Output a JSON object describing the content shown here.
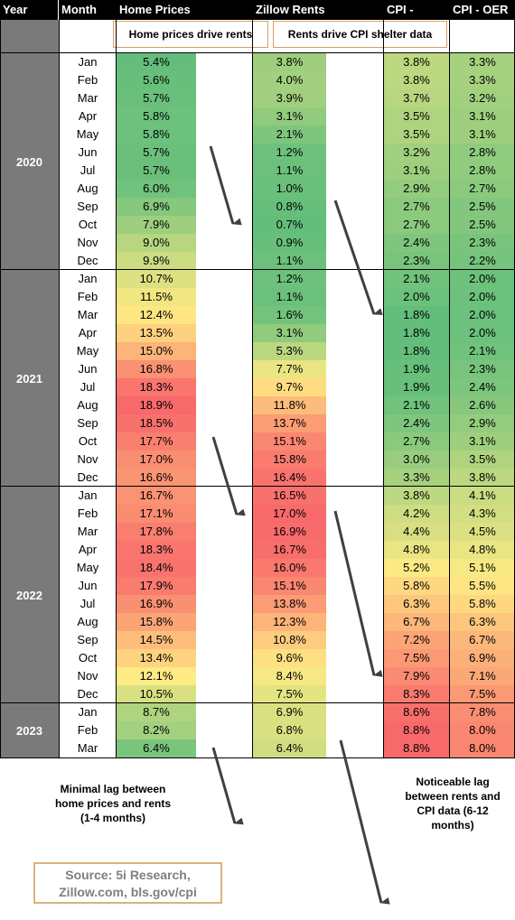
{
  "header": {
    "year": "Year",
    "month": "Month",
    "home_prices": "Home Prices",
    "zillow_rents": "Zillow Rents",
    "cpi_rents": "CPI - Rents",
    "cpi_oer": "CPI - OER"
  },
  "callouts": {
    "left": "Home prices drive rents",
    "right": "Rents drive CPI shelter data"
  },
  "notes": {
    "left": "Minimal lag between home prices and rents (1-4 months)",
    "right": "Noticeable lag between rents and CPI data (6-12 months)"
  },
  "source": "Source: 5i Research, Zillow.com, bls.gov/cpi",
  "colors": {
    "low": "#63be7b",
    "mid": "#ffeb84",
    "high": "#f8696b",
    "header_bg": "#000000",
    "year_bg": "#7a7a7a"
  },
  "chart_data": {
    "type": "table",
    "columns": [
      "Year",
      "Month",
      "Home Prices",
      "Zillow Rents",
      "CPI - Rents",
      "CPI - OER"
    ],
    "years": [
      {
        "year": "2020",
        "rows": [
          {
            "month": "Jan",
            "home_prices": "5.4%",
            "zillow_rents": "3.8%",
            "cpi_rents": "3.8%",
            "cpi_oer": "3.3%"
          },
          {
            "month": "Feb",
            "home_prices": "5.6%",
            "zillow_rents": "4.0%",
            "cpi_rents": "3.8%",
            "cpi_oer": "3.3%"
          },
          {
            "month": "Mar",
            "home_prices": "5.7%",
            "zillow_rents": "3.9%",
            "cpi_rents": "3.7%",
            "cpi_oer": "3.2%"
          },
          {
            "month": "Apr",
            "home_prices": "5.8%",
            "zillow_rents": "3.1%",
            "cpi_rents": "3.5%",
            "cpi_oer": "3.1%"
          },
          {
            "month": "May",
            "home_prices": "5.8%",
            "zillow_rents": "2.1%",
            "cpi_rents": "3.5%",
            "cpi_oer": "3.1%"
          },
          {
            "month": "Jun",
            "home_prices": "5.7%",
            "zillow_rents": "1.2%",
            "cpi_rents": "3.2%",
            "cpi_oer": "2.8%"
          },
          {
            "month": "Jul",
            "home_prices": "5.7%",
            "zillow_rents": "1.1%",
            "cpi_rents": "3.1%",
            "cpi_oer": "2.8%"
          },
          {
            "month": "Aug",
            "home_prices": "6.0%",
            "zillow_rents": "1.0%",
            "cpi_rents": "2.9%",
            "cpi_oer": "2.7%"
          },
          {
            "month": "Sep",
            "home_prices": "6.9%",
            "zillow_rents": "0.8%",
            "cpi_rents": "2.7%",
            "cpi_oer": "2.5%"
          },
          {
            "month": "Oct",
            "home_prices": "7.9%",
            "zillow_rents": "0.7%",
            "cpi_rents": "2.7%",
            "cpi_oer": "2.5%"
          },
          {
            "month": "Nov",
            "home_prices": "9.0%",
            "zillow_rents": "0.9%",
            "cpi_rents": "2.4%",
            "cpi_oer": "2.3%"
          },
          {
            "month": "Dec",
            "home_prices": "9.9%",
            "zillow_rents": "1.1%",
            "cpi_rents": "2.3%",
            "cpi_oer": "2.2%"
          }
        ]
      },
      {
        "year": "2021",
        "rows": [
          {
            "month": "Jan",
            "home_prices": "10.7%",
            "zillow_rents": "1.2%",
            "cpi_rents": "2.1%",
            "cpi_oer": "2.0%"
          },
          {
            "month": "Feb",
            "home_prices": "11.5%",
            "zillow_rents": "1.1%",
            "cpi_rents": "2.0%",
            "cpi_oer": "2.0%"
          },
          {
            "month": "Mar",
            "home_prices": "12.4%",
            "zillow_rents": "1.6%",
            "cpi_rents": "1.8%",
            "cpi_oer": "2.0%"
          },
          {
            "month": "Apr",
            "home_prices": "13.5%",
            "zillow_rents": "3.1%",
            "cpi_rents": "1.8%",
            "cpi_oer": "2.0%"
          },
          {
            "month": "May",
            "home_prices": "15.0%",
            "zillow_rents": "5.3%",
            "cpi_rents": "1.8%",
            "cpi_oer": "2.1%"
          },
          {
            "month": "Jun",
            "home_prices": "16.8%",
            "zillow_rents": "7.7%",
            "cpi_rents": "1.9%",
            "cpi_oer": "2.3%"
          },
          {
            "month": "Jul",
            "home_prices": "18.3%",
            "zillow_rents": "9.7%",
            "cpi_rents": "1.9%",
            "cpi_oer": "2.4%"
          },
          {
            "month": "Aug",
            "home_prices": "18.9%",
            "zillow_rents": "11.8%",
            "cpi_rents": "2.1%",
            "cpi_oer": "2.6%"
          },
          {
            "month": "Sep",
            "home_prices": "18.5%",
            "zillow_rents": "13.7%",
            "cpi_rents": "2.4%",
            "cpi_oer": "2.9%"
          },
          {
            "month": "Oct",
            "home_prices": "17.7%",
            "zillow_rents": "15.1%",
            "cpi_rents": "2.7%",
            "cpi_oer": "3.1%"
          },
          {
            "month": "Nov",
            "home_prices": "17.0%",
            "zillow_rents": "15.8%",
            "cpi_rents": "3.0%",
            "cpi_oer": "3.5%"
          },
          {
            "month": "Dec",
            "home_prices": "16.6%",
            "zillow_rents": "16.4%",
            "cpi_rents": "3.3%",
            "cpi_oer": "3.8%"
          }
        ]
      },
      {
        "year": "2022",
        "rows": [
          {
            "month": "Jan",
            "home_prices": "16.7%",
            "zillow_rents": "16.5%",
            "cpi_rents": "3.8%",
            "cpi_oer": "4.1%"
          },
          {
            "month": "Feb",
            "home_prices": "17.1%",
            "zillow_rents": "17.0%",
            "cpi_rents": "4.2%",
            "cpi_oer": "4.3%"
          },
          {
            "month": "Mar",
            "home_prices": "17.8%",
            "zillow_rents": "16.9%",
            "cpi_rents": "4.4%",
            "cpi_oer": "4.5%"
          },
          {
            "month": "Apr",
            "home_prices": "18.3%",
            "zillow_rents": "16.7%",
            "cpi_rents": "4.8%",
            "cpi_oer": "4.8%"
          },
          {
            "month": "May",
            "home_prices": "18.4%",
            "zillow_rents": "16.0%",
            "cpi_rents": "5.2%",
            "cpi_oer": "5.1%"
          },
          {
            "month": "Jun",
            "home_prices": "17.9%",
            "zillow_rents": "15.1%",
            "cpi_rents": "5.8%",
            "cpi_oer": "5.5%"
          },
          {
            "month": "Jul",
            "home_prices": "16.9%",
            "zillow_rents": "13.8%",
            "cpi_rents": "6.3%",
            "cpi_oer": "5.8%"
          },
          {
            "month": "Aug",
            "home_prices": "15.8%",
            "zillow_rents": "12.3%",
            "cpi_rents": "6.7%",
            "cpi_oer": "6.3%"
          },
          {
            "month": "Sep",
            "home_prices": "14.5%",
            "zillow_rents": "10.8%",
            "cpi_rents": "7.2%",
            "cpi_oer": "6.7%"
          },
          {
            "month": "Oct",
            "home_prices": "13.4%",
            "zillow_rents": "9.6%",
            "cpi_rents": "7.5%",
            "cpi_oer": "6.9%"
          },
          {
            "month": "Nov",
            "home_prices": "12.1%",
            "zillow_rents": "8.4%",
            "cpi_rents": "7.9%",
            "cpi_oer": "7.1%"
          },
          {
            "month": "Dec",
            "home_prices": "10.5%",
            "zillow_rents": "7.5%",
            "cpi_rents": "8.3%",
            "cpi_oer": "7.5%"
          }
        ]
      },
      {
        "year": "2023",
        "rows": [
          {
            "month": "Jan",
            "home_prices": "8.7%",
            "zillow_rents": "6.9%",
            "cpi_rents": "8.6%",
            "cpi_oer": "7.8%"
          },
          {
            "month": "Feb",
            "home_prices": "8.2%",
            "zillow_rents": "6.8%",
            "cpi_rents": "8.8%",
            "cpi_oer": "8.0%"
          },
          {
            "month": "Mar",
            "home_prices": "6.4%",
            "zillow_rents": "6.4%",
            "cpi_rents": "8.8%",
            "cpi_oer": "8.0%"
          }
        ]
      }
    ]
  }
}
